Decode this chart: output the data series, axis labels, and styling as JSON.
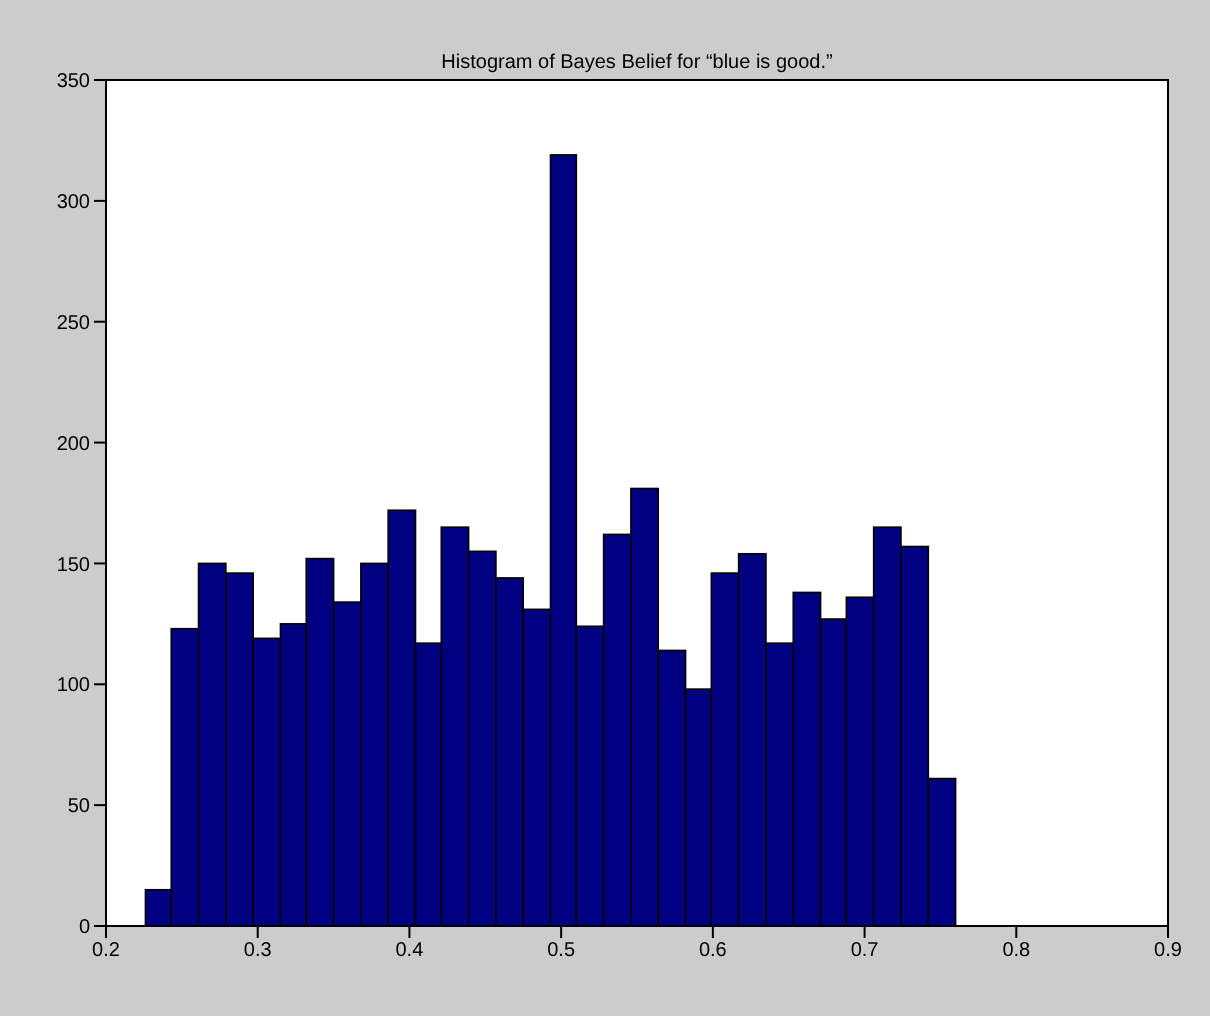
{
  "chart_data": {
    "type": "histogram",
    "title": "Histogram of Bayes Belief for “blue is good.”",
    "bins": [
      0.226,
      0.243,
      0.261,
      0.279,
      0.297,
      0.315,
      0.332,
      0.35,
      0.368,
      0.386,
      0.404,
      0.421,
      0.439,
      0.457,
      0.475,
      0.493,
      0.51,
      0.528,
      0.546,
      0.564,
      0.582,
      0.599,
      0.617,
      0.635,
      0.653,
      0.671,
      0.688,
      0.706,
      0.724,
      0.742,
      0.76
    ],
    "values": [
      15,
      123,
      150,
      146,
      119,
      125,
      152,
      134,
      150,
      172,
      117,
      165,
      155,
      144,
      131,
      319,
      124,
      162,
      181,
      114,
      98,
      146,
      154,
      117,
      138,
      127,
      136,
      165,
      157,
      61
    ],
    "color": "#000080",
    "xlim": [
      0.2,
      0.9
    ],
    "xticks": [
      0.2,
      0.3,
      0.4,
      0.5,
      0.6,
      0.7,
      0.8,
      0.9
    ],
    "ylim": [
      0,
      350
    ],
    "yticks": [
      0,
      50,
      100,
      150,
      200,
      250,
      300,
      350
    ]
  }
}
